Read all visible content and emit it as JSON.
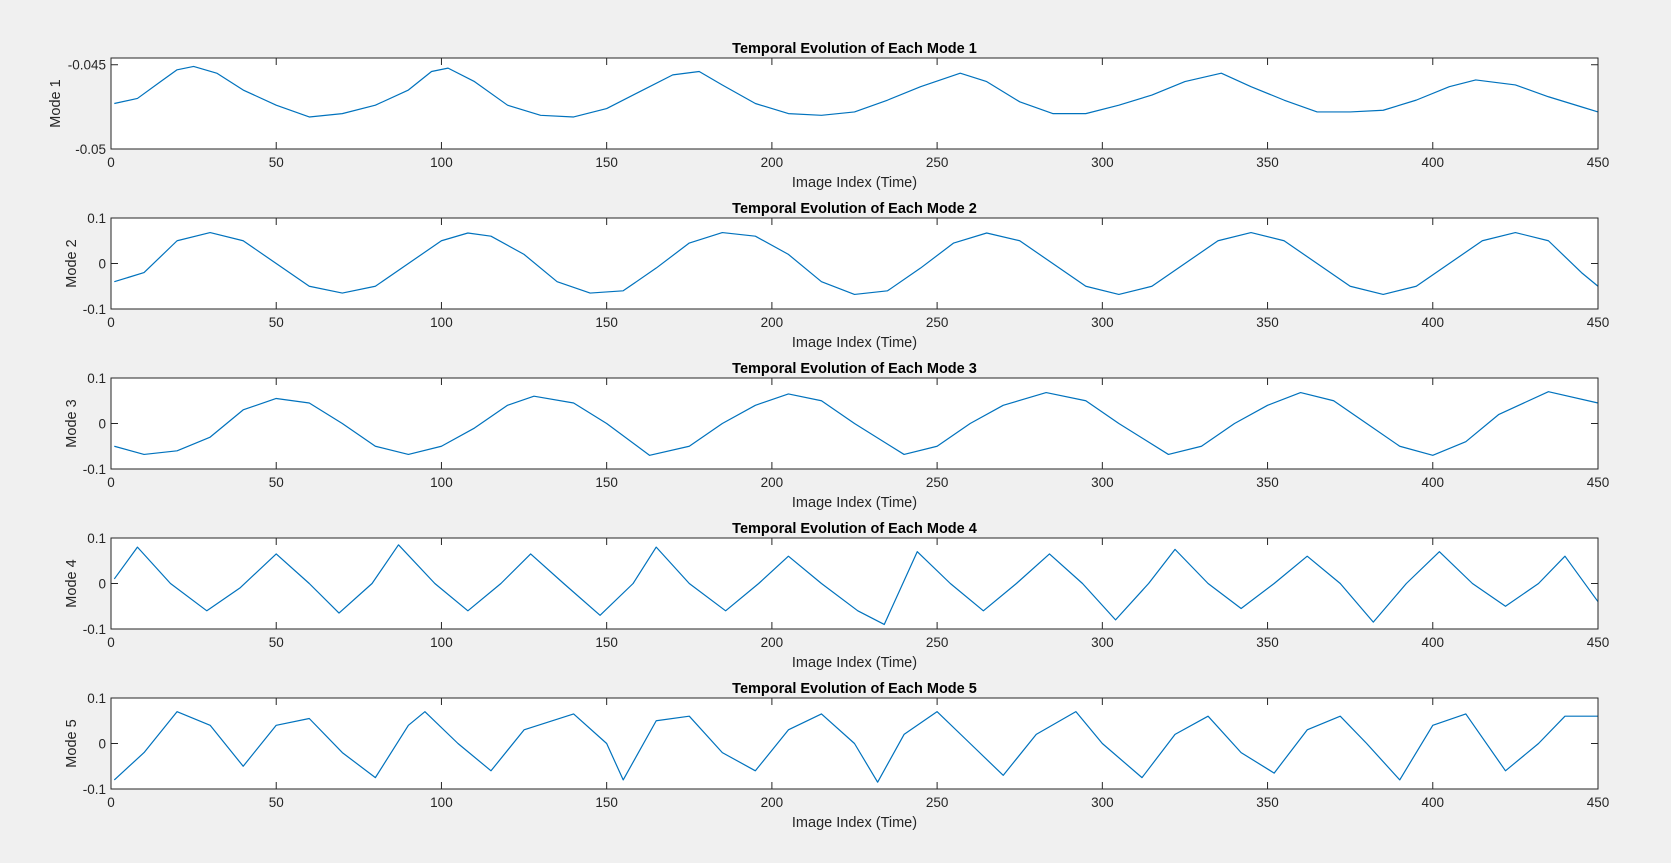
{
  "colors": {
    "figure_background": "#f0f0f0",
    "axes_background": "#ffffff",
    "axes_edge": "#262626",
    "series_line": "#0072bd"
  },
  "chart_data": [
    {
      "type": "line",
      "title": "Temporal Evolution of Each Mode 1",
      "xlabel": "Image Index (Time)",
      "ylabel": "Mode 1",
      "xlim": [
        0,
        450
      ],
      "ylim": [
        -0.05,
        -0.0446
      ],
      "xticks": [
        0,
        50,
        100,
        150,
        200,
        250,
        300,
        350,
        400,
        450
      ],
      "xtick_labels": [
        "0",
        "50",
        "100",
        "150",
        "200",
        "250",
        "300",
        "350",
        "400",
        "450"
      ],
      "yticks": [
        -0.05,
        -0.045
      ],
      "ytick_labels": [
        "-0.05",
        "-0.045"
      ],
      "grid": false,
      "series": [
        {
          "x": [
            1,
            8,
            15,
            20,
            25,
            32,
            40,
            50,
            60,
            70,
            80,
            90,
            97,
            102,
            110,
            120,
            130,
            140,
            150,
            160,
            170,
            178,
            185,
            195,
            205,
            215,
            225,
            235,
            245,
            257,
            265,
            275,
            285,
            295,
            305,
            315,
            325,
            336,
            345,
            355,
            365,
            375,
            385,
            395,
            405,
            413,
            425,
            435,
            445,
            450
          ],
          "y": [
            -0.0473,
            -0.047,
            -0.046,
            -0.0453,
            -0.0451,
            -0.0455,
            -0.0465,
            -0.0474,
            -0.0481,
            -0.0479,
            -0.0474,
            -0.0465,
            -0.0454,
            -0.0452,
            -0.046,
            -0.0474,
            -0.048,
            -0.0481,
            -0.0476,
            -0.0466,
            -0.0456,
            -0.0454,
            -0.0462,
            -0.0473,
            -0.0479,
            -0.048,
            -0.0478,
            -0.0471,
            -0.0463,
            -0.0455,
            -0.046,
            -0.0472,
            -0.0479,
            -0.0479,
            -0.0474,
            -0.0468,
            -0.046,
            -0.0455,
            -0.0463,
            -0.0471,
            -0.0478,
            -0.0478,
            -0.0477,
            -0.0471,
            -0.0463,
            -0.0459,
            -0.0462,
            -0.0469,
            -0.0475,
            -0.0478
          ]
        }
      ]
    },
    {
      "type": "line",
      "title": "Temporal Evolution of Each Mode 2",
      "xlabel": "Image Index (Time)",
      "ylabel": "Mode 2",
      "xlim": [
        0,
        450
      ],
      "ylim": [
        -0.1,
        0.1
      ],
      "xticks": [
        0,
        50,
        100,
        150,
        200,
        250,
        300,
        350,
        400,
        450
      ],
      "xtick_labels": [
        "0",
        "50",
        "100",
        "150",
        "200",
        "250",
        "300",
        "350",
        "400",
        "450"
      ],
      "yticks": [
        -0.1,
        0,
        0.1
      ],
      "ytick_labels": [
        "-0.1",
        "0",
        "0.1"
      ],
      "grid": false,
      "series": [
        {
          "x": [
            1,
            10,
            20,
            30,
            40,
            50,
            60,
            70,
            80,
            90,
            100,
            108,
            115,
            125,
            135,
            145,
            155,
            165,
            175,
            185,
            195,
            205,
            215,
            225,
            235,
            245,
            255,
            265,
            275,
            285,
            295,
            305,
            315,
            325,
            335,
            345,
            355,
            365,
            375,
            385,
            395,
            405,
            415,
            425,
            435,
            445,
            450
          ],
          "y": [
            -0.04,
            -0.02,
            0.05,
            0.068,
            0.05,
            0.0,
            -0.05,
            -0.065,
            -0.05,
            0.0,
            0.05,
            0.067,
            0.06,
            0.02,
            -0.04,
            -0.065,
            -0.06,
            -0.01,
            0.045,
            0.068,
            0.06,
            0.02,
            -0.04,
            -0.068,
            -0.06,
            -0.01,
            0.045,
            0.067,
            0.05,
            0.0,
            -0.05,
            -0.068,
            -0.05,
            0.0,
            0.05,
            0.068,
            0.05,
            0.0,
            -0.05,
            -0.068,
            -0.05,
            0.0,
            0.05,
            0.068,
            0.05,
            -0.02,
            -0.05
          ]
        }
      ]
    },
    {
      "type": "line",
      "title": "Temporal Evolution of Each Mode 3",
      "xlabel": "Image Index (Time)",
      "ylabel": "Mode 3",
      "xlim": [
        0,
        450
      ],
      "ylim": [
        -0.1,
        0.1
      ],
      "xticks": [
        0,
        50,
        100,
        150,
        200,
        250,
        300,
        350,
        400,
        450
      ],
      "xtick_labels": [
        "0",
        "50",
        "100",
        "150",
        "200",
        "250",
        "300",
        "350",
        "400",
        "450"
      ],
      "yticks": [
        -0.1,
        0,
        0.1
      ],
      "ytick_labels": [
        "-0.1",
        "0",
        "0.1"
      ],
      "grid": false,
      "series": [
        {
          "x": [
            1,
            10,
            20,
            30,
            40,
            50,
            60,
            70,
            80,
            90,
            100,
            110,
            120,
            128,
            140,
            150,
            163,
            175,
            185,
            195,
            205,
            215,
            225,
            240,
            250,
            260,
            270,
            283,
            295,
            305,
            320,
            330,
            340,
            350,
            360,
            370,
            380,
            390,
            400,
            410,
            420,
            435,
            450
          ],
          "y": [
            -0.05,
            -0.068,
            -0.06,
            -0.03,
            0.03,
            0.055,
            0.045,
            0.0,
            -0.05,
            -0.068,
            -0.05,
            -0.01,
            0.04,
            0.06,
            0.045,
            0.0,
            -0.07,
            -0.05,
            0.0,
            0.04,
            0.065,
            0.05,
            0.0,
            -0.068,
            -0.05,
            0.0,
            0.04,
            0.068,
            0.05,
            0.0,
            -0.068,
            -0.05,
            0.0,
            0.04,
            0.068,
            0.05,
            0.0,
            -0.05,
            -0.07,
            -0.04,
            0.02,
            0.07,
            0.045
          ]
        }
      ]
    },
    {
      "type": "line",
      "title": "Temporal Evolution of Each Mode 4",
      "xlabel": "Image Index (Time)",
      "ylabel": "Mode 4",
      "xlim": [
        0,
        450
      ],
      "ylim": [
        -0.1,
        0.1
      ],
      "xticks": [
        0,
        50,
        100,
        150,
        200,
        250,
        300,
        350,
        400,
        450
      ],
      "xtick_labels": [
        "0",
        "50",
        "100",
        "150",
        "200",
        "250",
        "300",
        "350",
        "400",
        "450"
      ],
      "yticks": [
        -0.1,
        0,
        0.1
      ],
      "ytick_labels": [
        "-0.1",
        "0",
        "0.1"
      ],
      "grid": false,
      "series": [
        {
          "x": [
            1,
            8,
            18,
            29,
            39,
            50,
            60,
            69,
            79,
            87,
            98,
            108,
            118,
            127,
            137,
            148,
            158,
            165,
            175,
            186,
            196,
            205,
            215,
            226,
            234,
            244,
            254,
            264,
            274,
            284,
            294,
            304,
            314,
            322,
            332,
            342,
            352,
            362,
            372,
            382,
            392,
            402,
            412,
            422,
            432,
            440,
            450
          ],
          "y": [
            0.01,
            0.08,
            0.0,
            -0.06,
            -0.01,
            0.065,
            0.0,
            -0.065,
            0.0,
            0.085,
            0.0,
            -0.06,
            0.0,
            0.065,
            0.0,
            -0.07,
            0.0,
            0.08,
            0.0,
            -0.06,
            0.0,
            0.06,
            0.0,
            -0.06,
            -0.09,
            0.07,
            0.0,
            -0.06,
            0.0,
            0.065,
            0.0,
            -0.08,
            0.0,
            0.075,
            0.0,
            -0.055,
            0.0,
            0.06,
            0.0,
            -0.085,
            0.0,
            0.07,
            0.0,
            -0.05,
            0.0,
            0.06,
            -0.04
          ]
        }
      ]
    },
    {
      "type": "line",
      "title": "Temporal Evolution of Each Mode 5",
      "xlabel": "Image Index (Time)",
      "ylabel": "Mode 5",
      "xlim": [
        0,
        450
      ],
      "ylim": [
        -0.1,
        0.1
      ],
      "xticks": [
        0,
        50,
        100,
        150,
        200,
        250,
        300,
        350,
        400,
        450
      ],
      "xtick_labels": [
        "0",
        "50",
        "100",
        "150",
        "200",
        "250",
        "300",
        "350",
        "400",
        "450"
      ],
      "yticks": [
        -0.1,
        0,
        0.1
      ],
      "ytick_labels": [
        "-0.1",
        "0",
        "0.1"
      ],
      "grid": false,
      "series": [
        {
          "x": [
            1,
            10,
            20,
            30,
            40,
            50,
            60,
            70,
            80,
            90,
            95,
            105,
            115,
            125,
            140,
            150,
            155,
            165,
            175,
            185,
            195,
            205,
            215,
            225,
            232,
            240,
            250,
            260,
            270,
            280,
            292,
            300,
            312,
            322,
            332,
            342,
            352,
            362,
            372,
            380,
            390,
            400,
            410,
            422,
            432,
            440,
            450
          ],
          "y": [
            -0.08,
            -0.02,
            0.07,
            0.04,
            -0.05,
            0.04,
            0.055,
            -0.02,
            -0.075,
            0.04,
            0.07,
            0.0,
            -0.06,
            0.03,
            0.065,
            0.0,
            -0.08,
            0.05,
            0.06,
            -0.02,
            -0.06,
            0.03,
            0.065,
            0.0,
            -0.085,
            0.02,
            0.07,
            0.0,
            -0.07,
            0.02,
            0.07,
            0.0,
            -0.075,
            0.02,
            0.06,
            -0.02,
            -0.065,
            0.03,
            0.06,
            0.0,
            -0.08,
            0.04,
            0.065,
            -0.06,
            0.0,
            0.06,
            0.06
          ]
        }
      ]
    }
  ]
}
